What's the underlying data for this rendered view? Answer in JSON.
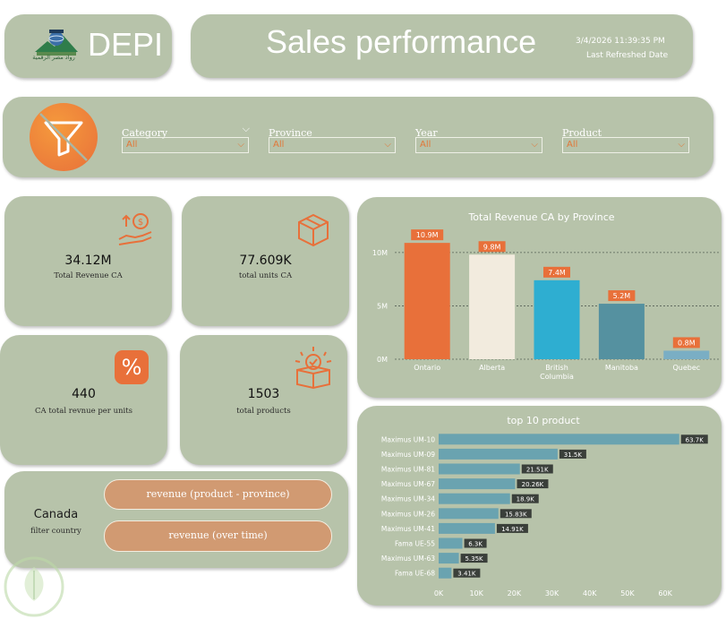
{
  "logo": {
    "caption": "رواد مصر الرقمية",
    "brand": "DEPI"
  },
  "header": {
    "title": "Sales performance",
    "refresh_datetime": "3/4/2026 11:39:35 PM",
    "refresh_label": "Last Refreshed Date"
  },
  "filters": [
    {
      "label": "Category",
      "value": "All"
    },
    {
      "label": "Province",
      "value": "All"
    },
    {
      "label": "Year",
      "value": "All"
    },
    {
      "label": "Product",
      "value": "All"
    }
  ],
  "kpis": {
    "revenue": {
      "value": "34.12M",
      "label": "Total Revenue CA",
      "icon": "money-hand-icon"
    },
    "units": {
      "value": "77.609K",
      "label": "total units CA",
      "icon": "box-icon"
    },
    "per_unit": {
      "value": "440",
      "label": "CA total revnue per units",
      "icon": "percent-icon"
    },
    "products": {
      "value": "1503",
      "label": "total products",
      "icon": "box-check-icon"
    }
  },
  "country": {
    "value": "Canada",
    "label": "filter country"
  },
  "nav_buttons": {
    "product_province": "revenue (product - province)",
    "over_time": "revenue (over time)"
  },
  "colors": {
    "card": "#b7c3aa",
    "accent": "#e8703a",
    "bar_teal": "#6aa3b0"
  },
  "chart_data": [
    {
      "type": "bar",
      "title": "Total Revenue CA by Province",
      "categories": [
        "Ontario",
        "Alberta",
        "British Columbia",
        "Manitoba",
        "Quebec"
      ],
      "category_lines": [
        [
          "Ontario"
        ],
        [
          "Alberta"
        ],
        [
          "British",
          "Columbia"
        ],
        [
          "Manitoba"
        ],
        [
          "Quebec"
        ]
      ],
      "values": [
        10.9,
        9.8,
        7.4,
        5.2,
        0.8
      ],
      "data_labels": [
        "10.9M",
        "9.8M",
        "7.4M",
        "5.2M",
        "0.8M"
      ],
      "colors": [
        "#e8703a",
        "#f2ebde",
        "#2eaed1",
        "#5591a0",
        "#7aaec4"
      ],
      "yticks": [
        "0M",
        "5M",
        "10M"
      ],
      "ytick_values": [
        0,
        5,
        10
      ],
      "ylim": [
        0,
        11.5
      ],
      "grid": true
    },
    {
      "type": "bar",
      "orientation": "horizontal",
      "title": "top 10 product",
      "categories": [
        "Maximus UM-10",
        "Maximus UM-09",
        "Maximus UM-81",
        "Maximus UM-67",
        "Maximus UM-34",
        "Maximus UM-26",
        "Maximus UM-41",
        "Fama UE-55",
        "Maximus UM-63",
        "Fama UE-68"
      ],
      "values": [
        63.7,
        31.5,
        21.51,
        20.26,
        18.9,
        15.83,
        14.91,
        6.3,
        5.35,
        3.41
      ],
      "data_labels": [
        "63.7K",
        "31.5K",
        "21.51K",
        "20.26K",
        "18.9K",
        "15.83K",
        "14.91K",
        "6.3K",
        "5.35K",
        "3.41K"
      ],
      "xticks": [
        "0K",
        "10K",
        "20K",
        "30K",
        "40K",
        "50K",
        "60K"
      ],
      "xtick_values": [
        0,
        10,
        20,
        30,
        40,
        50,
        60
      ],
      "xlim": [
        0,
        64
      ]
    }
  ]
}
